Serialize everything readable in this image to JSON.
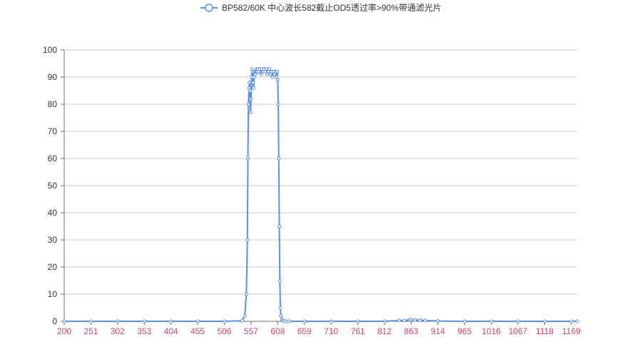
{
  "legend": {
    "series_name": "BP582/60K 中心波长582截止OD5透过率>90%带通滤光片"
  },
  "colors": {
    "series": "#5b8ff0",
    "grid": "#cccccc",
    "axis": "#6e7079",
    "x_label": "#d4466a",
    "y_label": "#333333"
  },
  "chart_data": {
    "type": "line",
    "title": "",
    "xlabel": "",
    "ylabel": "",
    "legend_position": "top-center",
    "grid": true,
    "xlim": [
      200,
      1180
    ],
    "ylim": [
      0,
      100
    ],
    "x_ticks": [
      "200",
      "251",
      "302",
      "353",
      "404",
      "455",
      "506",
      "557",
      "608",
      "659",
      "710",
      "761",
      "812",
      "863",
      "914",
      "965",
      "1016",
      "1067",
      "1118",
      "1169"
    ],
    "y_ticks": [
      "0",
      "10",
      "20",
      "30",
      "40",
      "50",
      "60",
      "70",
      "80",
      "90",
      "100"
    ],
    "series": [
      {
        "name": "BP582/60K 中心波长582截止OD5透过率>90%带通滤光片",
        "x": [
          200,
          251,
          302,
          353,
          404,
          455,
          506,
          540,
          545,
          548,
          550,
          551,
          552,
          553,
          554,
          555,
          556,
          557,
          558,
          559,
          560,
          561,
          562,
          563,
          564,
          565,
          566,
          567,
          568,
          569,
          570,
          572,
          574,
          576,
          578,
          580,
          582,
          584,
          586,
          588,
          590,
          592,
          594,
          596,
          598,
          600,
          602,
          604,
          606,
          607,
          608,
          609,
          610,
          611,
          612,
          613,
          614,
          616,
          618,
          620,
          625,
          630,
          659,
          710,
          761,
          812,
          840,
          850,
          860,
          863,
          870,
          880,
          890,
          914,
          965,
          1016,
          1067,
          1118,
          1169,
          1180
        ],
        "y": [
          0,
          0,
          0,
          0,
          0,
          0,
          0,
          0.2,
          2,
          10,
          30,
          60,
          80,
          86,
          88,
          85,
          77,
          82,
          90,
          93,
          92,
          88,
          86,
          90,
          92,
          91,
          92,
          92,
          93,
          92,
          93,
          92,
          93,
          91,
          93,
          92,
          93,
          92,
          93,
          91,
          92,
          93,
          91,
          92,
          90,
          92,
          91,
          92,
          90,
          92,
          89,
          80,
          60,
          35,
          15,
          5,
          2,
          0.6,
          0.2,
          0,
          0,
          0,
          0,
          0,
          0,
          0,
          0.3,
          0.3,
          0.5,
          0.6,
          0.5,
          0.4,
          0.3,
          0.1,
          0,
          0,
          0,
          0,
          0,
          0
        ]
      }
    ]
  }
}
